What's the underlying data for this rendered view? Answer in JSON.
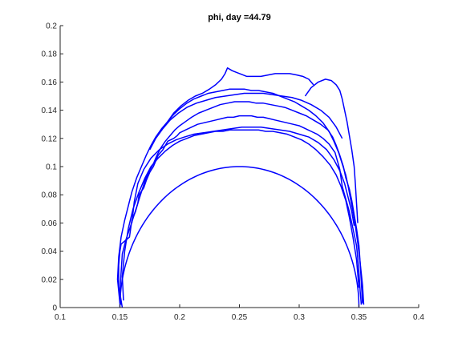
{
  "chart_data": {
    "type": "line",
    "title": "phi, day =44.79",
    "xlabel": "",
    "ylabel": "",
    "xlim": [
      0.1,
      0.4
    ],
    "ylim": [
      0,
      0.2
    ],
    "x_ticks": [
      0.1,
      0.15,
      0.2,
      0.25,
      0.3,
      0.35,
      0.4
    ],
    "x_tick_labels": [
      "0.1",
      "0.15",
      "0.2",
      "0.25",
      "0.3",
      "0.35",
      "0.4"
    ],
    "y_ticks": [
      0,
      0.02,
      0.04,
      0.06,
      0.08,
      0.1,
      0.12,
      0.14,
      0.16,
      0.18,
      0.2
    ],
    "y_tick_labels": [
      "0",
      "0.02",
      "0.04",
      "0.06",
      "0.08",
      "0.1",
      "0.12",
      "0.14",
      "0.16",
      "0.18",
      "0.2"
    ],
    "grid": false,
    "legend": null,
    "series": [
      {
        "style": "semicircle",
        "center_x": 0.25,
        "radius": 0.1,
        "color": "#0000ff"
      },
      {
        "style": "contour",
        "color": "#0000ff",
        "x": [
          0.151,
          0.149,
          0.149,
          0.15,
          0.151,
          0.158,
          0.16,
          0.163,
          0.165,
          0.166,
          0.17,
          0.172,
          0.175,
          0.178,
          0.18,
          0.182,
          0.186,
          0.188,
          0.19,
          0.195,
          0.198,
          0.2,
          0.205,
          0.21,
          0.215,
          0.22,
          0.225,
          0.23,
          0.235,
          0.24,
          0.245,
          0.25,
          0.255,
          0.26,
          0.265,
          0.27,
          0.275,
          0.28,
          0.285,
          0.29,
          0.295,
          0.3,
          0.305,
          0.31,
          0.315,
          0.32,
          0.325,
          0.33,
          0.332,
          0.334,
          0.335,
          0.336,
          0.338,
          0.34,
          0.342,
          0.344,
          0.346,
          0.348,
          0.349,
          0.35,
          0.351,
          0.352
        ],
        "y": [
          0.002,
          0.015,
          0.03,
          0.04,
          0.045,
          0.05,
          0.062,
          0.068,
          0.074,
          0.08,
          0.085,
          0.09,
          0.096,
          0.1,
          0.104,
          0.108,
          0.112,
          0.115,
          0.118,
          0.12,
          0.122,
          0.124,
          0.126,
          0.128,
          0.13,
          0.131,
          0.132,
          0.133,
          0.134,
          0.135,
          0.135,
          0.136,
          0.136,
          0.136,
          0.135,
          0.135,
          0.134,
          0.133,
          0.132,
          0.131,
          0.13,
          0.129,
          0.127,
          0.125,
          0.123,
          0.12,
          0.116,
          0.11,
          0.104,
          0.098,
          0.092,
          0.086,
          0.08,
          0.074,
          0.068,
          0.06,
          0.052,
          0.044,
          0.035,
          0.025,
          0.012,
          0.002
        ]
      },
      {
        "style": "contour",
        "color": "#0000ff",
        "x": [
          0.152,
          0.15,
          0.151,
          0.152,
          0.155,
          0.159,
          0.162,
          0.165,
          0.168,
          0.171,
          0.174,
          0.178,
          0.181,
          0.184,
          0.188,
          0.192,
          0.196,
          0.2,
          0.205,
          0.21,
          0.216,
          0.222,
          0.228,
          0.234,
          0.24,
          0.246,
          0.252,
          0.258,
          0.264,
          0.27,
          0.276,
          0.282,
          0.288,
          0.294,
          0.3,
          0.306,
          0.312,
          0.318,
          0.324,
          0.328,
          0.331,
          0.334,
          0.337,
          0.339,
          0.342,
          0.344,
          0.346,
          0.348,
          0.35,
          0.351,
          0.352,
          0.353
        ],
        "y": [
          0.0,
          0.01,
          0.025,
          0.038,
          0.048,
          0.058,
          0.066,
          0.074,
          0.082,
          0.09,
          0.096,
          0.102,
          0.108,
          0.113,
          0.118,
          0.122,
          0.126,
          0.129,
          0.132,
          0.135,
          0.138,
          0.14,
          0.142,
          0.144,
          0.145,
          0.146,
          0.146,
          0.146,
          0.145,
          0.145,
          0.144,
          0.143,
          0.142,
          0.14,
          0.138,
          0.136,
          0.133,
          0.13,
          0.126,
          0.121,
          0.115,
          0.108,
          0.1,
          0.092,
          0.084,
          0.076,
          0.066,
          0.056,
          0.044,
          0.032,
          0.018,
          0.003
        ]
      },
      {
        "style": "contour",
        "color": "#0000ff",
        "x": [
          0.15,
          0.148,
          0.149,
          0.151,
          0.154,
          0.157,
          0.16,
          0.164,
          0.168,
          0.172,
          0.176,
          0.18,
          0.185,
          0.19,
          0.195,
          0.2,
          0.206,
          0.212,
          0.218,
          0.224,
          0.23,
          0.236,
          0.242,
          0.248,
          0.254,
          0.26,
          0.266,
          0.272,
          0.278,
          0.284,
          0.29,
          0.296,
          0.302,
          0.308,
          0.314,
          0.32,
          0.325,
          0.329,
          0.333,
          0.336,
          0.339,
          0.341,
          0.343,
          0.345,
          0.347,
          0.349,
          0.351,
          0.353,
          0.354
        ],
        "y": [
          0.003,
          0.02,
          0.036,
          0.05,
          0.062,
          0.072,
          0.082,
          0.092,
          0.1,
          0.108,
          0.115,
          0.121,
          0.127,
          0.132,
          0.137,
          0.141,
          0.145,
          0.148,
          0.15,
          0.152,
          0.153,
          0.154,
          0.155,
          0.155,
          0.155,
          0.154,
          0.154,
          0.153,
          0.152,
          0.15,
          0.148,
          0.146,
          0.143,
          0.14,
          0.136,
          0.131,
          0.125,
          0.118,
          0.11,
          0.102,
          0.094,
          0.086,
          0.077,
          0.068,
          0.058,
          0.046,
          0.032,
          0.016,
          0.002
        ]
      },
      {
        "style": "contour",
        "color": "#0000ff",
        "x": [
          0.153,
          0.152,
          0.154,
          0.157,
          0.161,
          0.166,
          0.171,
          0.176,
          0.182,
          0.188,
          0.194,
          0.2,
          0.206,
          0.212,
          0.218,
          0.224,
          0.23,
          0.236,
          0.242,
          0.248,
          0.254,
          0.26,
          0.266,
          0.272,
          0.278,
          0.284,
          0.29,
          0.296,
          0.302,
          0.308,
          0.314,
          0.32,
          0.326,
          0.331,
          0.335,
          0.339,
          0.342,
          0.345,
          0.348,
          0.35
        ],
        "y": [
          0.005,
          0.022,
          0.04,
          0.056,
          0.07,
          0.082,
          0.092,
          0.1,
          0.106,
          0.111,
          0.115,
          0.118,
          0.12,
          0.122,
          0.123,
          0.124,
          0.125,
          0.125,
          0.126,
          0.126,
          0.126,
          0.126,
          0.126,
          0.125,
          0.125,
          0.124,
          0.123,
          0.121,
          0.119,
          0.116,
          0.112,
          0.107,
          0.101,
          0.094,
          0.086,
          0.076,
          0.064,
          0.05,
          0.034,
          0.014
        ]
      },
      {
        "style": "contour",
        "color": "#0000ff",
        "x": [
          0.16,
          0.162,
          0.165,
          0.17,
          0.176,
          0.183,
          0.19,
          0.197,
          0.204,
          0.212,
          0.22,
          0.228,
          0.236,
          0.244,
          0.252,
          0.26,
          0.268,
          0.276,
          0.284,
          0.292,
          0.3,
          0.308,
          0.316,
          0.323,
          0.329,
          0.334,
          0.338,
          0.341,
          0.344,
          0.346
        ],
        "y": [
          0.06,
          0.075,
          0.088,
          0.098,
          0.106,
          0.112,
          0.116,
          0.119,
          0.121,
          0.123,
          0.124,
          0.125,
          0.126,
          0.127,
          0.128,
          0.128,
          0.128,
          0.127,
          0.126,
          0.125,
          0.123,
          0.121,
          0.117,
          0.112,
          0.105,
          0.097,
          0.088,
          0.078,
          0.068,
          0.058
        ]
      },
      {
        "style": "contour",
        "color": "#0000ff",
        "x": [
          0.175,
          0.18,
          0.186,
          0.192,
          0.199,
          0.206,
          0.214,
          0.222,
          0.23,
          0.238,
          0.246,
          0.254,
          0.262,
          0.27,
          0.278,
          0.286,
          0.294,
          0.302,
          0.31,
          0.318,
          0.325,
          0.331,
          0.336
        ],
        "y": [
          0.112,
          0.12,
          0.127,
          0.133,
          0.138,
          0.142,
          0.145,
          0.147,
          0.149,
          0.15,
          0.151,
          0.152,
          0.152,
          0.152,
          0.151,
          0.15,
          0.149,
          0.147,
          0.144,
          0.14,
          0.135,
          0.128,
          0.12
        ]
      },
      {
        "style": "contour",
        "color": "#0000ff",
        "x": [
          0.19,
          0.195,
          0.201,
          0.207,
          0.213,
          0.219,
          0.225,
          0.23,
          0.235,
          0.238,
          0.24,
          0.244,
          0.25,
          0.256,
          0.262,
          0.268,
          0.274,
          0.28,
          0.286,
          0.292,
          0.298,
          0.303,
          0.308,
          0.312
        ],
        "y": [
          0.132,
          0.138,
          0.143,
          0.147,
          0.15,
          0.152,
          0.155,
          0.158,
          0.162,
          0.166,
          0.17,
          0.168,
          0.166,
          0.164,
          0.164,
          0.164,
          0.165,
          0.166,
          0.166,
          0.166,
          0.165,
          0.164,
          0.162,
          0.158
        ]
      },
      {
        "style": "contour",
        "color": "#0000ff",
        "x": [
          0.305,
          0.31,
          0.316,
          0.322,
          0.327,
          0.331,
          0.334,
          0.336,
          0.338,
          0.34,
          0.342,
          0.344,
          0.346,
          0.347,
          0.348,
          0.349
        ],
        "y": [
          0.15,
          0.156,
          0.16,
          0.162,
          0.161,
          0.158,
          0.154,
          0.148,
          0.14,
          0.132,
          0.122,
          0.112,
          0.1,
          0.088,
          0.074,
          0.06
        ]
      }
    ]
  }
}
